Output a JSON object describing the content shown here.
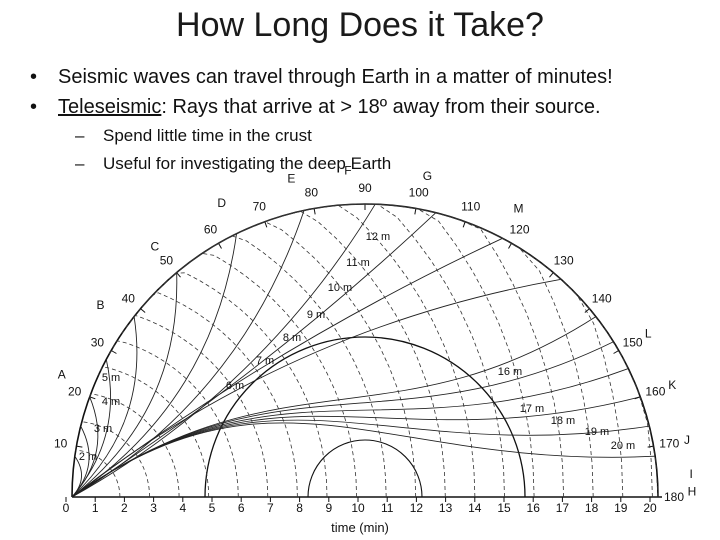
{
  "title": "How Long Does it Take?",
  "bullets": [
    {
      "prefix": "",
      "text": "Seismic waves can travel through Earth in a matter of minutes!"
    },
    {
      "prefix": "Teleseismic",
      "text": ": Rays that arrive at > 18º away from their source."
    }
  ],
  "sub_bullets": [
    "Spend little time in the crust",
    "Useful for investigating the deep Earth"
  ],
  "diagram": {
    "distance_labels": [
      "10",
      "20",
      "30",
      "40",
      "50",
      "60",
      "70",
      "80",
      "90",
      "100",
      "110",
      "120",
      "130",
      "140",
      "150",
      "160",
      "170",
      "180"
    ],
    "letter_labels": [
      "A",
      "B",
      "C",
      "D",
      "E",
      "F",
      "G",
      "M",
      "L",
      "K",
      "J",
      "I",
      "H"
    ],
    "minute_labels": [
      "2 m",
      "3 m",
      "4 m",
      "5 m",
      "6 m",
      "7 m",
      "8 m",
      "9 m",
      "10 m",
      "11 m",
      "12 m",
      "16 m",
      "17 m",
      "18 m",
      "19 m",
      "20 m"
    ],
    "time_ticks": [
      "0",
      "1",
      "2",
      "3",
      "4",
      "5",
      "6",
      "7",
      "8",
      "9",
      "10",
      "11",
      "12",
      "13",
      "14",
      "15",
      "16",
      "17",
      "18",
      "19",
      "20"
    ],
    "time_axis_label": "time (min)"
  }
}
